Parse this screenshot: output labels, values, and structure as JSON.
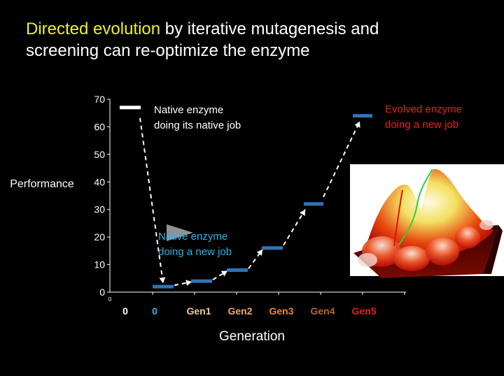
{
  "slide": {
    "title_highlight": "Directed evolution",
    "title_rest": " by iterative mutagenesis and",
    "title_line2": "screening can re-optimize the enzyme"
  },
  "colors": {
    "background": "#000000",
    "title_highlight": "#f0f020",
    "native_label": "#ffffff",
    "new_job_label": "#29b6e8",
    "evolved_label": "#e8201a",
    "bar_blue": "#2e75b6",
    "bar_white": "#ffffff"
  },
  "chart_data": {
    "type": "scatter",
    "ylabel": "Performance",
    "xlabel": "Generation",
    "ylim": [
      0,
      70
    ],
    "yticks": [
      0,
      10,
      20,
      30,
      40,
      50,
      60,
      70
    ],
    "x_origin_label": "0",
    "categories": [
      "0",
      "0",
      "Gen1",
      "Gen2",
      "Gen3",
      "Gen4",
      "Gen5"
    ],
    "category_colors": [
      "#ffffff",
      "#29b6e8",
      "#f5c9a0",
      "#f0a860",
      "#e88a30",
      "#b8622a",
      "#e8201a"
    ],
    "points": [
      {
        "category_index": 0,
        "value": 67,
        "color": "#ffffff"
      },
      {
        "category_index": 1,
        "value": 2,
        "color": "#2e75b6"
      },
      {
        "category_index": 2,
        "value": 4,
        "color": "#2e75b6"
      },
      {
        "category_index": 3,
        "value": 8,
        "color": "#2e75b6"
      },
      {
        "category_index": 4,
        "value": 16,
        "color": "#2e75b6"
      },
      {
        "category_index": 5,
        "value": 32,
        "color": "#2e75b6"
      },
      {
        "category_index": 6,
        "value": 64,
        "color": "#2e75b6"
      }
    ],
    "annotations": [
      {
        "lines": [
          "Native enzyme",
          "doing its native job"
        ],
        "color": "#ffffff"
      },
      {
        "lines": [
          "Native enzyme",
          "doing a new job"
        ],
        "color": "#29b6e8"
      },
      {
        "lines": [
          "Evolved enzyme",
          "doing a new job"
        ],
        "color": "#e8201a"
      }
    ]
  }
}
